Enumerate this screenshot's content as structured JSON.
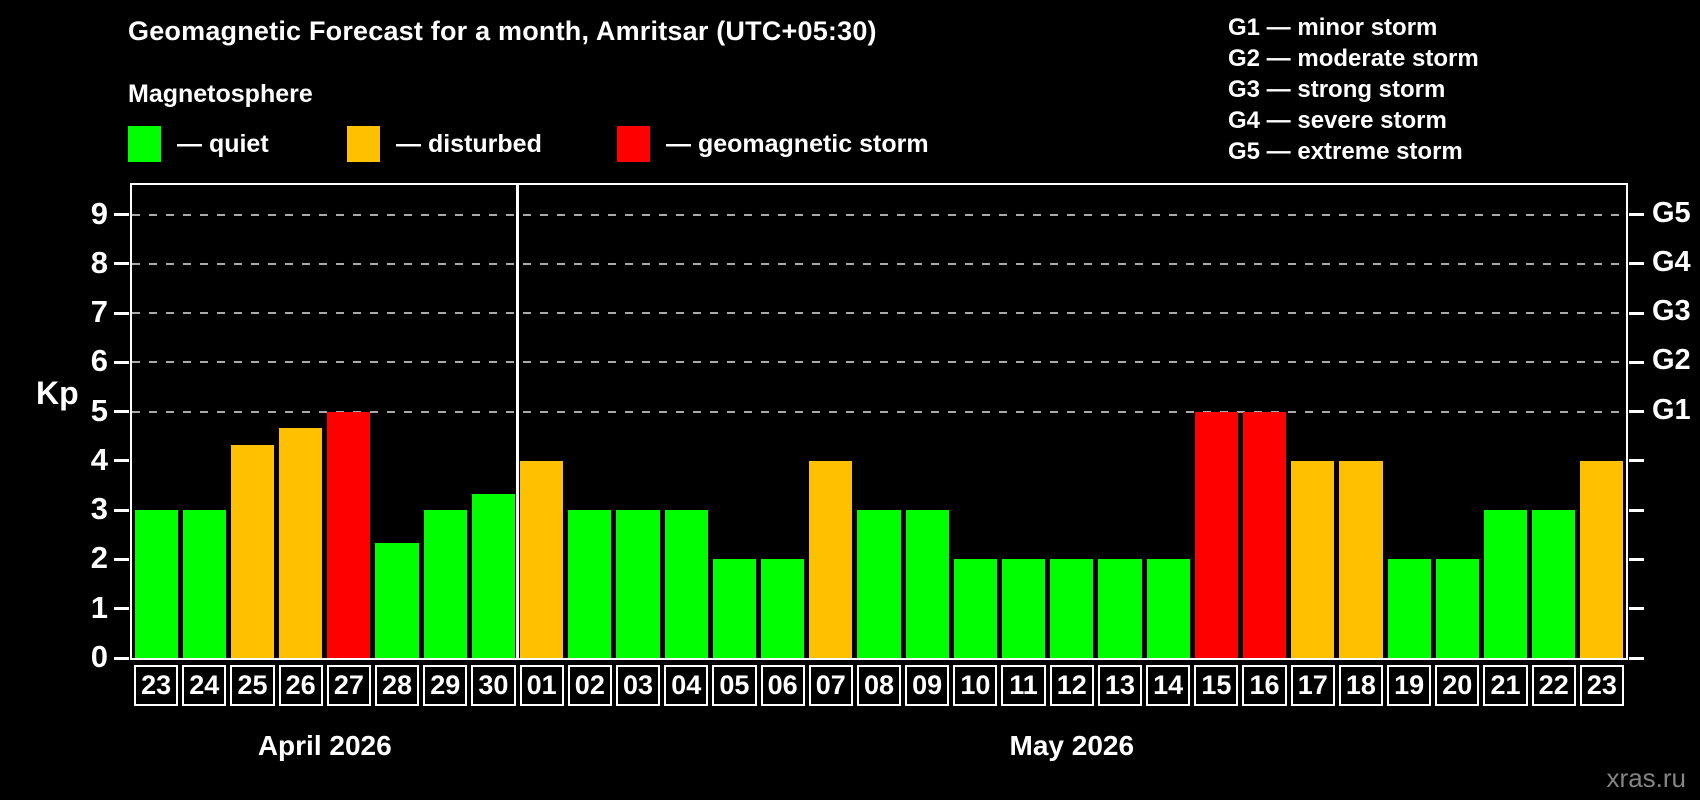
{
  "header": {
    "title": "Geomagnetic Forecast for a month, Amritsar (UTC+05:30)",
    "subtitle": "Magnetosphere"
  },
  "legend": {
    "items": [
      {
        "key": "quiet",
        "label": "— quiet",
        "color": "#00ff00"
      },
      {
        "key": "disturbed",
        "label": "— disturbed",
        "color": "#ffc000"
      },
      {
        "key": "storm",
        "label": "— geomagnetic storm",
        "color": "#ff0000"
      }
    ]
  },
  "g_legend": {
    "items": [
      "G1 — minor storm",
      "G2 — moderate storm",
      "G3 — strong storm",
      "G4 — severe storm",
      "G5 — extreme storm"
    ]
  },
  "watermark": "xras.ru",
  "chart_data": {
    "type": "bar",
    "title": "Geomagnetic Forecast for a month, Amritsar (UTC+05:30)",
    "ylabel": "Kp",
    "ylim": [
      0,
      9.6
    ],
    "y_ticks": [
      0,
      1,
      2,
      3,
      4,
      5,
      6,
      7,
      8,
      9
    ],
    "gridlines": [
      5,
      6,
      7,
      8,
      9
    ],
    "grid_color": "#a9a9a9",
    "right_axis_labels": [
      {
        "kp": 5,
        "label": "G1"
      },
      {
        "kp": 6,
        "label": "G2"
      },
      {
        "kp": 7,
        "label": "G3"
      },
      {
        "kp": 8,
        "label": "G4"
      },
      {
        "kp": 9,
        "label": "G5"
      }
    ],
    "categories": [
      "23",
      "24",
      "25",
      "26",
      "27",
      "28",
      "29",
      "30",
      "01",
      "02",
      "03",
      "04",
      "05",
      "06",
      "07",
      "08",
      "09",
      "10",
      "11",
      "12",
      "13",
      "14",
      "15",
      "16",
      "17",
      "18",
      "19",
      "20",
      "21",
      "22",
      "23"
    ],
    "values": [
      3,
      3,
      4.33,
      4.67,
      5,
      2.33,
      3,
      3.33,
      4,
      3,
      3,
      3,
      2,
      2,
      4,
      3,
      3,
      2,
      2,
      2,
      2,
      2,
      5,
      5,
      4,
      4,
      2,
      2,
      3,
      3,
      4
    ],
    "statuses": [
      "quiet",
      "quiet",
      "disturbed",
      "disturbed",
      "storm",
      "quiet",
      "quiet",
      "quiet",
      "disturbed",
      "quiet",
      "quiet",
      "quiet",
      "quiet",
      "quiet",
      "disturbed",
      "quiet",
      "quiet",
      "quiet",
      "quiet",
      "quiet",
      "quiet",
      "quiet",
      "storm",
      "storm",
      "disturbed",
      "disturbed",
      "quiet",
      "quiet",
      "quiet",
      "quiet",
      "disturbed"
    ],
    "status_colors": {
      "quiet": "#00ff00",
      "disturbed": "#ffc000",
      "storm": "#ff0000"
    },
    "groups": [
      {
        "label": "April 2026",
        "count": 8
      },
      {
        "label": "May 2026",
        "count": 23
      }
    ],
    "legend_position": "top-left",
    "grid": true
  }
}
